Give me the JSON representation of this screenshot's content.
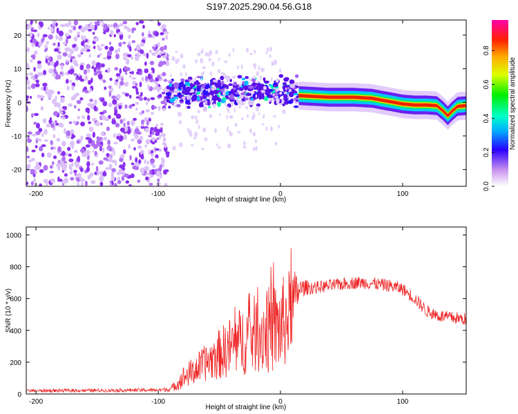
{
  "title": "S197.2025.290.04.56.G18",
  "colors": {
    "snr_line": "#ee2222",
    "axis": "#000000",
    "background": "#ffffff"
  },
  "chart_data": [
    {
      "type": "heatmap",
      "name": "spectrogram",
      "xlabel": "Height of straight line (km)",
      "ylabel": "Frequency (Hz)",
      "xlim": [
        -208,
        152
      ],
      "ylim": [
        -25,
        24.5
      ],
      "x_ticks": [
        -200,
        -100,
        0,
        100
      ],
      "y_ticks": [
        -20,
        -10,
        0,
        10,
        20
      ],
      "colorbar": {
        "label": "Normalized spectral amplitude",
        "range": [
          0,
          0.98
        ],
        "ticks": [
          "0.0",
          "0.2",
          "0.4",
          "0.6",
          "0.8"
        ]
      },
      "regions": [
        {
          "name": "noise",
          "x_range": [
            -208,
            -92
          ],
          "freq_range": [
            -25,
            24.5
          ],
          "amplitude": 0.12
        },
        {
          "name": "transition",
          "x_range": [
            -92,
            15
          ],
          "freq_range": [
            -5,
            10
          ],
          "amplitude": 0.3
        },
        {
          "name": "tone",
          "x_range": [
            15,
            152
          ],
          "amplitude": 0.95
        }
      ],
      "ridge": {
        "x": [
          15,
          40,
          60,
          75,
          85,
          90,
          100,
          110,
          120,
          128,
          133,
          137,
          140,
          145,
          152
        ],
        "freq": [
          2,
          1.5,
          1.5,
          1.2,
          0.5,
          0.2,
          -0.5,
          -0.8,
          -0.8,
          -1.0,
          -2.5,
          -4.0,
          -2.8,
          -1.2,
          -1.0
        ]
      }
    },
    {
      "type": "line",
      "name": "snr",
      "xlabel": "Height of straight line (km)",
      "ylabel": "SNR (10 * v/v)",
      "xlim": [
        -208,
        152
      ],
      "ylim": [
        0,
        1050
      ],
      "x_ticks": [
        -200,
        -100,
        0,
        100
      ],
      "y_ticks": [
        0,
        200,
        400,
        600,
        800,
        1000
      ],
      "envelope": {
        "x": [
          -208,
          -100,
          -90,
          -85,
          -80,
          -60,
          -40,
          -20,
          -10,
          0,
          5,
          10,
          15,
          20,
          30,
          40,
          50,
          60,
          70,
          80,
          90,
          100,
          110,
          120,
          130,
          140,
          152
        ],
        "mean": [
          20,
          25,
          30,
          60,
          100,
          200,
          300,
          380,
          400,
          420,
          470,
          560,
          650,
          670,
          670,
          680,
          690,
          700,
          700,
          690,
          680,
          660,
          600,
          520,
          490,
          480,
          470
        ],
        "amplitude": [
          10,
          12,
          15,
          40,
          70,
          120,
          200,
          250,
          280,
          300,
          300,
          250,
          80,
          50,
          40,
          40,
          40,
          40,
          40,
          40,
          40,
          40,
          40,
          40,
          40,
          40,
          40
        ]
      },
      "series": [
        {
          "name": "SNR",
          "color": "#ee2222"
        }
      ]
    }
  ]
}
